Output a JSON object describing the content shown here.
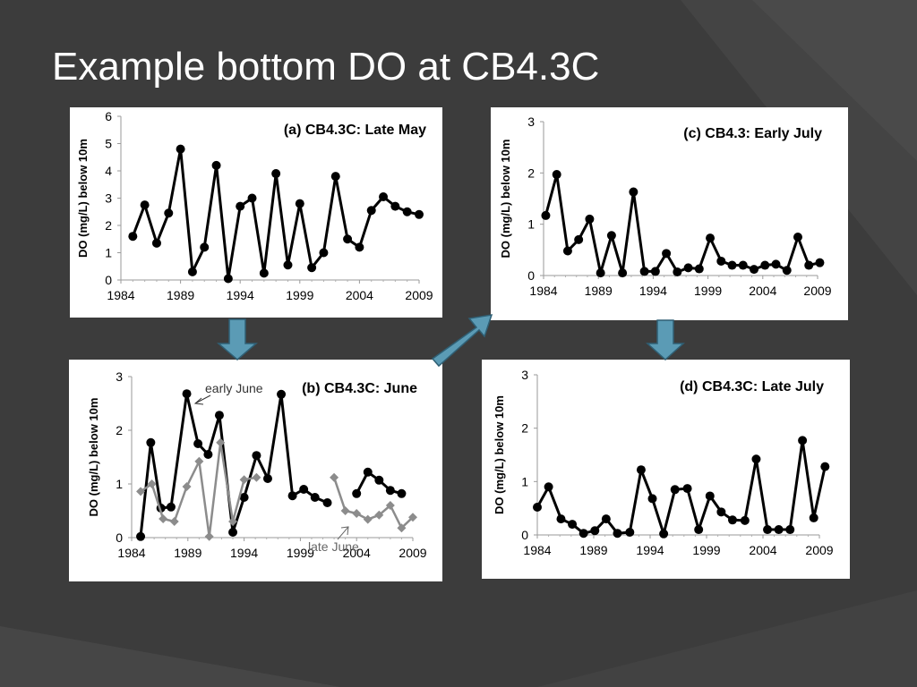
{
  "slide": {
    "title": "Example bottom DO at CB4.3C"
  },
  "colors": {
    "background": "#3c3c3c",
    "panel": "#ffffff",
    "series_main": "#000000",
    "series_late_june": "#8c8c8c",
    "arrow": "#5b9bb5"
  },
  "chart_data": [
    {
      "id": "a",
      "type": "line",
      "title": "(a) CB4.3C: Late May",
      "xlabel": "",
      "ylabel": "DO (mg/L) below 10m",
      "xlim": [
        1984,
        2009
      ],
      "ylim": [
        0,
        6
      ],
      "xticks": [
        1984,
        1989,
        1994,
        1999,
        2004,
        2009
      ],
      "yticks": [
        0,
        1,
        2,
        3,
        4,
        5,
        6
      ],
      "series": [
        {
          "name": "Late May",
          "marker": "circle",
          "color": "#000000",
          "x": [
            1985,
            1986,
            1987,
            1988,
            1989,
            1990,
            1991,
            1992,
            1993,
            1994,
            1995,
            1996,
            1997,
            1998,
            1999,
            2000,
            2001,
            2002,
            2003,
            2004,
            2005,
            2006,
            2007,
            2008,
            2009
          ],
          "y": [
            1.6,
            2.75,
            1.35,
            2.45,
            4.8,
            0.3,
            1.2,
            4.2,
            0.05,
            2.7,
            3.0,
            0.25,
            3.9,
            0.55,
            2.8,
            0.45,
            1.0,
            3.8,
            1.5,
            1.2,
            2.55,
            3.05,
            2.7,
            2.5,
            2.4
          ]
        }
      ]
    },
    {
      "id": "b",
      "type": "line",
      "title": "(b) CB4.3C: June",
      "xlabel": "",
      "ylabel": "DO (mg/L) below 10m",
      "xlim": [
        1984,
        2009
      ],
      "ylim": [
        0,
        3
      ],
      "xticks": [
        1984,
        1989,
        1994,
        1999,
        2004,
        2009
      ],
      "yticks": [
        0,
        1,
        2,
        3
      ],
      "annotations": [
        "early June",
        "late June"
      ],
      "series": [
        {
          "name": "early June",
          "marker": "circle",
          "color": "#000000",
          "segments": [
            {
              "x": [
                1984.8,
                1985.7,
                1986.6,
                1987.5,
                1988.9,
                1989.9,
                1990.8,
                1991.8,
                1993.0,
                1994.0,
                1995.1,
                1996.1,
                1997.3,
                1998.3,
                1999.3,
                2000.3,
                2001.4
              ],
              "y": [
                0.02,
                1.77,
                0.55,
                0.57,
                2.68,
                1.75,
                1.55,
                2.28,
                0.1,
                0.75,
                1.53,
                1.1,
                2.67,
                0.78,
                0.9,
                0.75,
                0.65
              ]
            },
            {
              "x": [
                2004.0,
                2005.0,
                2006.0,
                2007.0,
                2008.0
              ],
              "y": [
                0.82,
                1.22,
                1.07,
                0.88,
                0.82
              ]
            }
          ]
        },
        {
          "name": "late June",
          "marker": "diamond",
          "color": "#8c8c8c",
          "segments": [
            {
              "x": [
                1984.8,
                1985.8,
                1986.8,
                1987.8,
                1988.9,
                1990.0,
                1990.9,
                1991.9,
                1993.0,
                1994.0,
                1995.1
              ],
              "y": [
                0.86,
                1.0,
                0.35,
                0.3,
                0.95,
                1.42,
                0.02,
                1.77,
                0.3,
                1.08,
                1.12
              ]
            },
            {
              "x": [
                2002.0,
                2003.0,
                2004.0,
                2005.0,
                2006.0,
                2007.0,
                2008.0,
                2009.0
              ],
              "y": [
                1.12,
                0.5,
                0.45,
                0.34,
                0.42,
                0.6,
                0.18,
                0.38
              ]
            }
          ]
        }
      ]
    },
    {
      "id": "c",
      "type": "line",
      "title": "(c) CB4.3: Early July",
      "xlabel": "",
      "ylabel": "DO (mg/L) below 10m",
      "xlim": [
        1984,
        2009
      ],
      "ylim": [
        0,
        3
      ],
      "xticks": [
        1984,
        1989,
        1994,
        1999,
        2004,
        2009
      ],
      "yticks": [
        0,
        1,
        2,
        3
      ],
      "series": [
        {
          "name": "Early July",
          "marker": "circle",
          "color": "#000000",
          "x": [
            1984.2,
            1985.2,
            1986.2,
            1987.2,
            1988.2,
            1989.2,
            1990.2,
            1991.2,
            1992.2,
            1993.2,
            1994.2,
            1995.2,
            1996.2,
            1997.2,
            1998.2,
            1999.2,
            2000.2,
            2001.2,
            2002.2,
            2003.2,
            2004.2,
            2005.2,
            2006.2,
            2007.2,
            2008.2,
            2009.2
          ],
          "y": [
            1.17,
            1.97,
            0.48,
            0.7,
            1.1,
            0.05,
            0.78,
            0.05,
            1.63,
            0.08,
            0.08,
            0.43,
            0.07,
            0.15,
            0.13,
            0.73,
            0.28,
            0.2,
            0.2,
            0.12,
            0.2,
            0.22,
            0.1,
            0.75,
            0.2,
            0.25
          ]
        }
      ]
    },
    {
      "id": "d",
      "type": "line",
      "title": "(d) CB4.3C: Late July",
      "xlabel": "",
      "ylabel": "DO (mg/L) below 10m",
      "xlim": [
        1984,
        2009
      ],
      "ylim": [
        0,
        3
      ],
      "xticks": [
        1984,
        1989,
        1994,
        1999,
        2004,
        2009
      ],
      "yticks": [
        0,
        1,
        2,
        3
      ],
      "series": [
        {
          "name": "Late July",
          "marker": "circle",
          "color": "#000000",
          "x": [
            1984.0,
            1985.0,
            1986.1,
            1987.1,
            1988.1,
            1989.1,
            1990.1,
            1991.1,
            1992.2,
            1993.2,
            1994.2,
            1995.2,
            1996.2,
            1997.3,
            1998.3,
            1999.3,
            2000.3,
            2001.3,
            2002.4,
            2003.4,
            2004.4,
            2005.4,
            2006.4,
            2007.5,
            2008.5,
            2009.5
          ],
          "y": [
            0.52,
            0.9,
            0.3,
            0.2,
            0.03,
            0.08,
            0.3,
            0.03,
            0.05,
            1.22,
            0.68,
            0.02,
            0.85,
            0.87,
            0.1,
            0.73,
            0.43,
            0.28,
            0.27,
            1.42,
            0.1,
            0.1,
            0.1,
            1.77,
            0.32,
            1.28
          ]
        }
      ]
    }
  ]
}
